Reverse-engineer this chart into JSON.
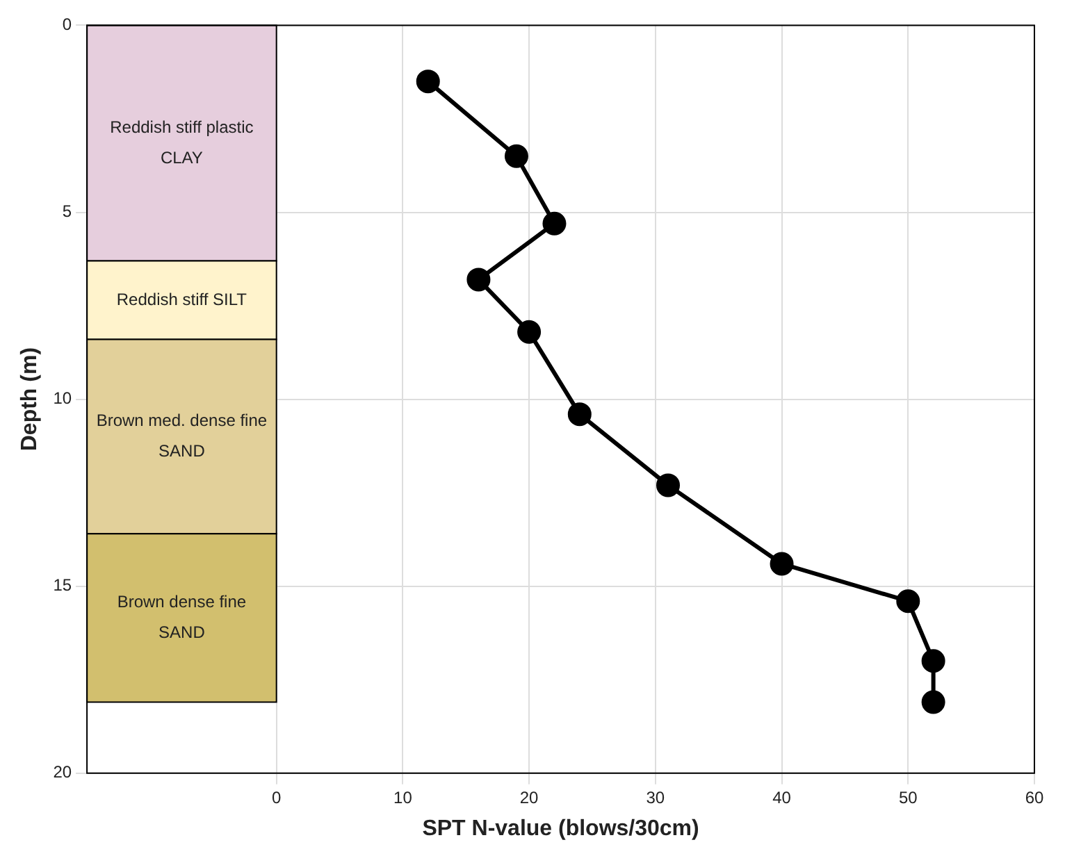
{
  "chart_data": {
    "type": "line",
    "xlabel": "SPT N-value (blows/30cm)",
    "ylabel": "Depth (m)",
    "x": [
      12,
      19,
      22,
      16,
      20,
      24,
      31,
      40,
      50,
      52,
      52
    ],
    "values": [
      1.5,
      3.5,
      5.3,
      6.8,
      8.2,
      10.4,
      12.3,
      14.4,
      15.4,
      17.0,
      18.1
    ],
    "color": "#000000",
    "marker": "circle",
    "line_style": "solid",
    "xlim": [
      -15,
      60
    ],
    "xticks": [
      0,
      10,
      20,
      30,
      40,
      50,
      60
    ],
    "ylim": [
      20,
      0
    ],
    "yticks": [
      0,
      5,
      10,
      15,
      20
    ],
    "grid": true,
    "bands": [
      {
        "axis": "y",
        "from": 0,
        "to": 6.3,
        "label": "Reddish stiff plastic CLAY",
        "color": "#e6cedd"
      },
      {
        "axis": "y",
        "from": 6.3,
        "to": 8.4,
        "label": "Reddish stiff SILT",
        "color": "#fff3cc"
      },
      {
        "axis": "y",
        "from": 8.4,
        "to": 13.6,
        "label": "Brown med. dense fine SAND",
        "color": "#e2d09a"
      },
      {
        "axis": "y",
        "from": 13.6,
        "to": 18.1,
        "label": "Brown dense fine SAND",
        "color": "#d2bf6e"
      }
    ]
  }
}
